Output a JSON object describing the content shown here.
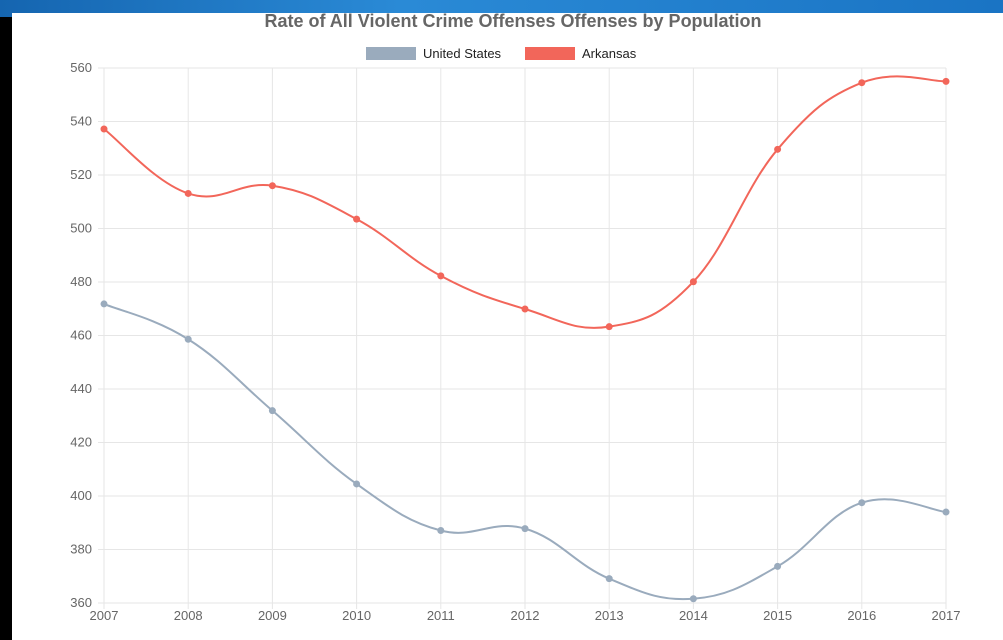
{
  "chart_data": {
    "type": "line",
    "title": "Rate of All Violent Crime Offenses Offenses by Population",
    "xlabel": "",
    "ylabel": "",
    "x": [
      "2007",
      "2008",
      "2009",
      "2010",
      "2011",
      "2012",
      "2013",
      "2014",
      "2015",
      "2016",
      "2017"
    ],
    "ylim": [
      360,
      560
    ],
    "yticks": [
      360,
      380,
      400,
      420,
      440,
      460,
      480,
      500,
      520,
      540,
      560
    ],
    "grid": true,
    "legend_position": "top",
    "series": [
      {
        "name": "United States",
        "color": "#9aabbd",
        "values": [
          471.8,
          458.6,
          431.9,
          404.5,
          387.1,
          387.8,
          369.1,
          361.6,
          373.7,
          397.5,
          394.0
        ]
      },
      {
        "name": "Arkansas",
        "color": "#f2665a",
        "values": [
          537.2,
          513.1,
          516.0,
          503.5,
          482.3,
          469.9,
          463.3,
          480.1,
          529.6,
          554.5,
          555.0
        ]
      }
    ]
  }
}
